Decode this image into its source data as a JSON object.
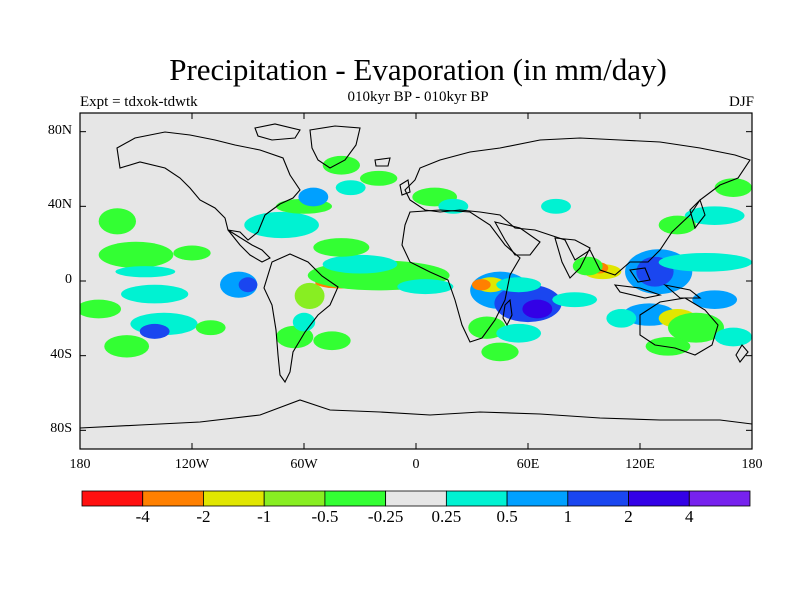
{
  "title": "Precipitation - Evaporation (in mm/day)",
  "subtitle": "010kyr BP - 010kyr BP",
  "experiment": "Expt = tdxok-tdwtk",
  "season": "DJF",
  "map": {
    "projection": "cylindrical-equidistant",
    "lon_range": [
      -180,
      180
    ],
    "lat_range": [
      -90,
      90
    ],
    "lat_ticks": [
      {
        "value": 80,
        "label": "80N"
      },
      {
        "value": 40,
        "label": "40N"
      },
      {
        "value": 0,
        "label": "0"
      },
      {
        "value": -40,
        "label": "40S"
      },
      {
        "value": -80,
        "label": "80S"
      }
    ],
    "lon_ticks": [
      {
        "value": -180,
        "label": "180"
      },
      {
        "value": -120,
        "label": "120W"
      },
      {
        "value": -60,
        "label": "60W"
      },
      {
        "value": 0,
        "label": "0"
      },
      {
        "value": 60,
        "label": "60E"
      },
      {
        "value": 120,
        "label": "120E"
      },
      {
        "value": 180,
        "label": "180"
      }
    ],
    "background_color": "#e6e6e6",
    "contour_patches": [
      {
        "lon": -140,
        "lat": -7,
        "rx": 18,
        "ry": 5,
        "color": "#00f2d2"
      },
      {
        "lon": -170,
        "lat": -15,
        "rx": 12,
        "ry": 5,
        "color": "#33ff33"
      },
      {
        "lon": -135,
        "lat": -23,
        "rx": 18,
        "ry": 6,
        "color": "#00f2d2"
      },
      {
        "lon": -140,
        "lat": -27,
        "rx": 8,
        "ry": 4,
        "color": "#1a46f0"
      },
      {
        "lon": -155,
        "lat": -35,
        "rx": 12,
        "ry": 6,
        "color": "#33ff33"
      },
      {
        "lon": -150,
        "lat": 14,
        "rx": 20,
        "ry": 7,
        "color": "#33ff33"
      },
      {
        "lon": -145,
        "lat": 5,
        "rx": 16,
        "ry": 3,
        "color": "#00f2d2"
      },
      {
        "lon": -120,
        "lat": 15,
        "rx": 10,
        "ry": 4,
        "color": "#33ff33"
      },
      {
        "lon": -160,
        "lat": 32,
        "rx": 10,
        "ry": 7,
        "color": "#33ff33"
      },
      {
        "lon": -95,
        "lat": -2,
        "rx": 10,
        "ry": 7,
        "color": "#00a0ff"
      },
      {
        "lon": -90,
        "lat": -2,
        "rx": 5,
        "ry": 4,
        "color": "#1a46f0"
      },
      {
        "lon": -110,
        "lat": -25,
        "rx": 8,
        "ry": 4,
        "color": "#33ff33"
      },
      {
        "lon": -65,
        "lat": -30,
        "rx": 10,
        "ry": 6,
        "color": "#33ff33"
      },
      {
        "lon": -57,
        "lat": -8,
        "rx": 8,
        "ry": 7,
        "color": "#88ee22"
      },
      {
        "lon": -60,
        "lat": -22,
        "rx": 6,
        "ry": 5,
        "color": "#00f2d2"
      },
      {
        "lon": -45,
        "lat": -32,
        "rx": 10,
        "ry": 5,
        "color": "#33ff33"
      },
      {
        "lon": -40,
        "lat": -1,
        "rx": 14,
        "ry": 3,
        "color": "#ff8000"
      },
      {
        "lon": -28,
        "lat": 2,
        "rx": 26,
        "ry": 5,
        "color": "#e1e600"
      },
      {
        "lon": -20,
        "lat": 3,
        "rx": 38,
        "ry": 8,
        "color": "#33ff33"
      },
      {
        "lon": -30,
        "lat": 9,
        "rx": 20,
        "ry": 5,
        "color": "#00f2d2"
      },
      {
        "lon": 5,
        "lat": -3,
        "rx": 15,
        "ry": 4,
        "color": "#00f2d2"
      },
      {
        "lon": -40,
        "lat": 18,
        "rx": 15,
        "ry": 5,
        "color": "#33ff33"
      },
      {
        "lon": -72,
        "lat": 30,
        "rx": 20,
        "ry": 7,
        "color": "#00f2d2"
      },
      {
        "lon": -60,
        "lat": 40,
        "rx": 15,
        "ry": 4,
        "color": "#33ff33"
      },
      {
        "lon": -55,
        "lat": 45,
        "rx": 8,
        "ry": 5,
        "color": "#00a0ff"
      },
      {
        "lon": -40,
        "lat": 62,
        "rx": 10,
        "ry": 5,
        "color": "#33ff33"
      },
      {
        "lon": -20,
        "lat": 55,
        "rx": 10,
        "ry": 4,
        "color": "#33ff33"
      },
      {
        "lon": -35,
        "lat": 50,
        "rx": 8,
        "ry": 4,
        "color": "#00f2d2"
      },
      {
        "lon": 10,
        "lat": 45,
        "rx": 12,
        "ry": 5,
        "color": "#33ff33"
      },
      {
        "lon": 20,
        "lat": 40,
        "rx": 8,
        "ry": 4,
        "color": "#00f2d2"
      },
      {
        "lon": 45,
        "lat": -5,
        "rx": 16,
        "ry": 10,
        "color": "#00a0ff"
      },
      {
        "lon": 60,
        "lat": -12,
        "rx": 18,
        "ry": 10,
        "color": "#1a46f0"
      },
      {
        "lon": 65,
        "lat": -15,
        "rx": 8,
        "ry": 5,
        "color": "#3300e6"
      },
      {
        "lon": 40,
        "lat": -2,
        "rx": 8,
        "ry": 4,
        "color": "#e1e600"
      },
      {
        "lon": 35,
        "lat": -2,
        "rx": 5,
        "ry": 3,
        "color": "#ff8000"
      },
      {
        "lon": 38,
        "lat": -25,
        "rx": 10,
        "ry": 6,
        "color": "#33ff33"
      },
      {
        "lon": 55,
        "lat": -28,
        "rx": 12,
        "ry": 5,
        "color": "#00f2d2"
      },
      {
        "lon": 45,
        "lat": -38,
        "rx": 10,
        "ry": 5,
        "color": "#33ff33"
      },
      {
        "lon": 55,
        "lat": -2,
        "rx": 12,
        "ry": 4,
        "color": "#00f2d2"
      },
      {
        "lon": 100,
        "lat": 5,
        "rx": 10,
        "ry": 4,
        "color": "#e1e600"
      },
      {
        "lon": 98,
        "lat": 7,
        "rx": 5,
        "ry": 3,
        "color": "#ff8000"
      },
      {
        "lon": 92,
        "lat": 8,
        "rx": 8,
        "ry": 5,
        "color": "#33ff33"
      },
      {
        "lon": 130,
        "lat": 5,
        "rx": 18,
        "ry": 12,
        "color": "#00a0ff"
      },
      {
        "lon": 128,
        "lat": 5,
        "rx": 10,
        "ry": 8,
        "color": "#1a46f0"
      },
      {
        "lon": 155,
        "lat": 10,
        "rx": 25,
        "ry": 5,
        "color": "#00f2d2"
      },
      {
        "lon": 160,
        "lat": -10,
        "rx": 12,
        "ry": 5,
        "color": "#00a0ff"
      },
      {
        "lon": 125,
        "lat": -18,
        "rx": 14,
        "ry": 6,
        "color": "#00a0ff"
      },
      {
        "lon": 140,
        "lat": -20,
        "rx": 10,
        "ry": 5,
        "color": "#e1e600"
      },
      {
        "lon": 150,
        "lat": -25,
        "rx": 15,
        "ry": 8,
        "color": "#33ff33"
      },
      {
        "lon": 135,
        "lat": -35,
        "rx": 12,
        "ry": 5,
        "color": "#33ff33"
      },
      {
        "lon": 110,
        "lat": -20,
        "rx": 8,
        "ry": 5,
        "color": "#00f2d2"
      },
      {
        "lon": 170,
        "lat": -30,
        "rx": 10,
        "ry": 5,
        "color": "#00f2d2"
      },
      {
        "lon": 85,
        "lat": -10,
        "rx": 12,
        "ry": 4,
        "color": "#00f2d2"
      },
      {
        "lon": 160,
        "lat": 35,
        "rx": 16,
        "ry": 5,
        "color": "#00f2d2"
      },
      {
        "lon": 140,
        "lat": 30,
        "rx": 10,
        "ry": 5,
        "color": "#33ff33"
      },
      {
        "lon": 170,
        "lat": 50,
        "rx": 10,
        "ry": 5,
        "color": "#33ff33"
      },
      {
        "lon": 75,
        "lat": 40,
        "rx": 8,
        "ry": 4,
        "color": "#00f2d2"
      }
    ]
  },
  "colorbar": {
    "colors": [
      "#ff1010",
      "#ff8000",
      "#e1e600",
      "#88ee22",
      "#33ff33",
      "#e6e6e6",
      "#00f2d2",
      "#00a0ff",
      "#1a46f0",
      "#3300e6",
      "#7722ee"
    ],
    "labels": [
      "-4",
      "-2",
      "-1",
      "-0.5",
      "-0.25",
      "0.25",
      "0.5",
      "1",
      "2",
      "4"
    ]
  }
}
